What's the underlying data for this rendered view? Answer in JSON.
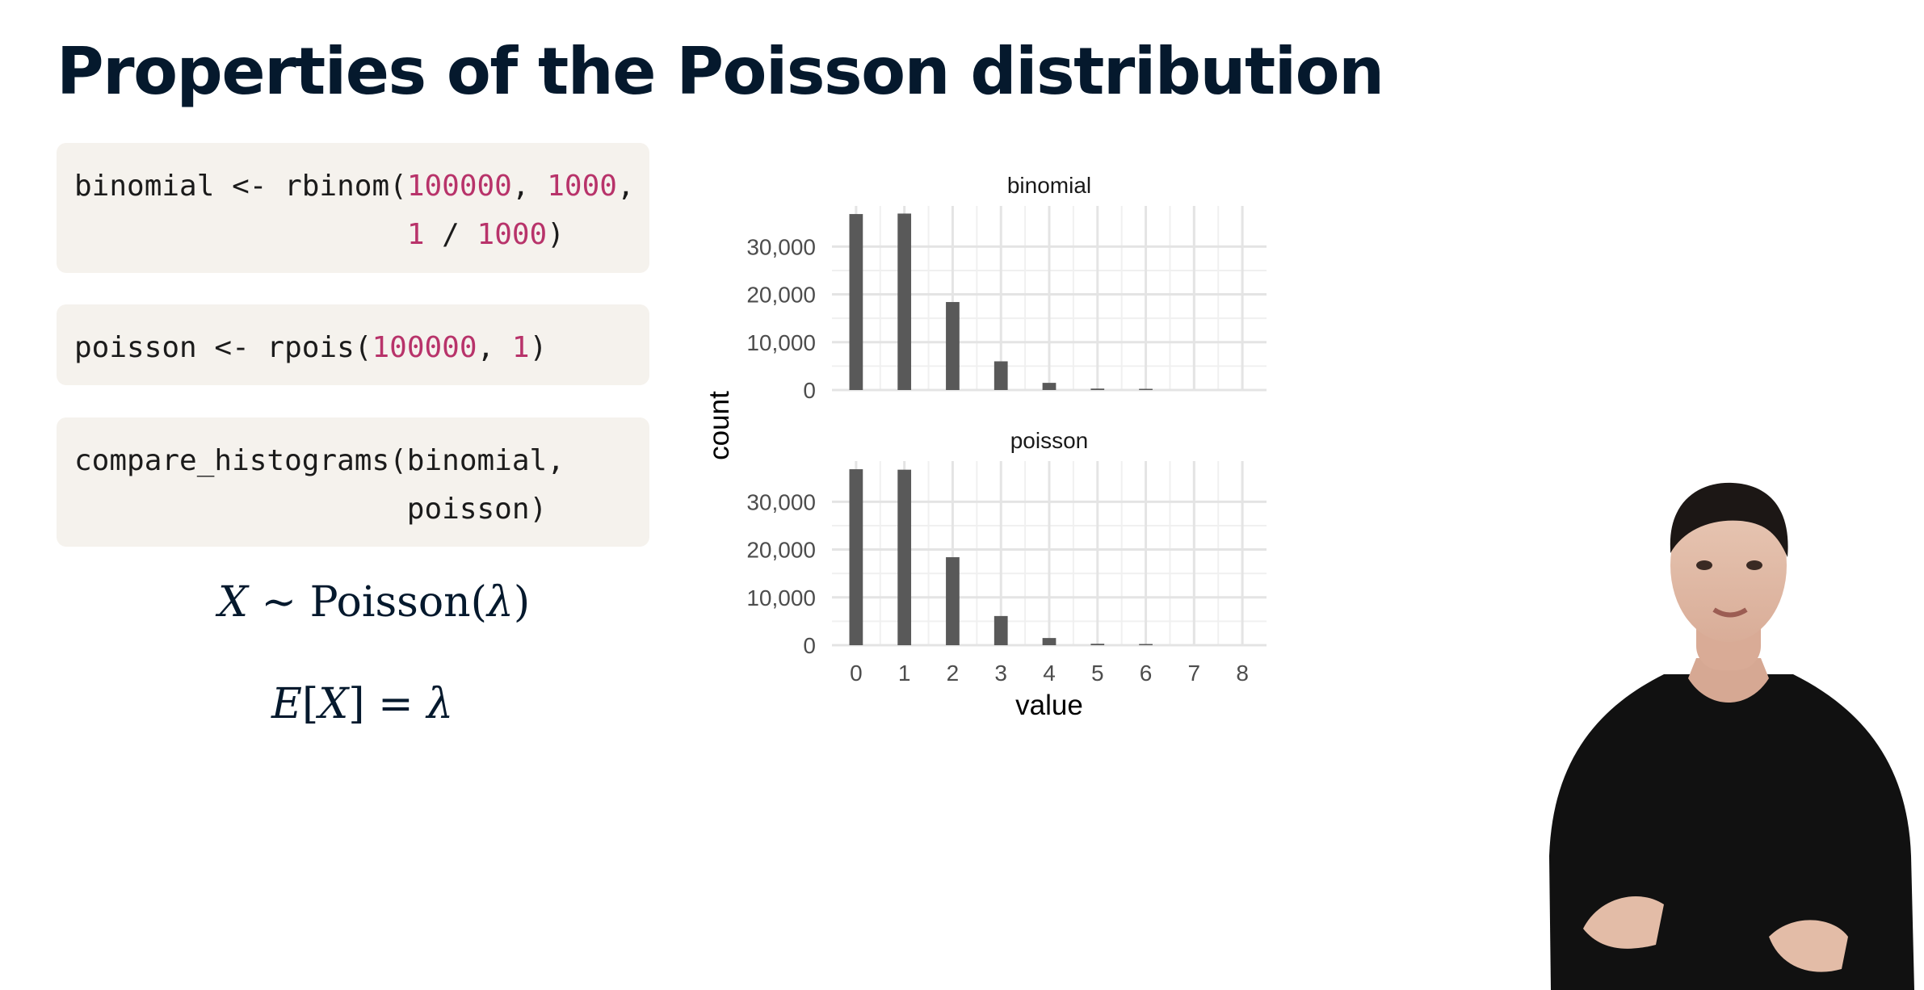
{
  "slide": {
    "title": "Properties of the Poisson distribution"
  },
  "code_blocks": [
    {
      "lines": [
        [
          {
            "t": "binomial <- rbinom("
          },
          {
            "t": "100000",
            "n": true
          },
          {
            "t": ", "
          },
          {
            "t": "1000",
            "n": true
          },
          {
            "t": ","
          }
        ],
        [
          {
            "t": "                   "
          },
          {
            "t": "1",
            "n": true
          },
          {
            "t": " / "
          },
          {
            "t": "1000",
            "n": true
          },
          {
            "t": ")"
          }
        ]
      ]
    },
    {
      "lines": [
        [
          {
            "t": "poisson <- rpois("
          },
          {
            "t": "100000",
            "n": true
          },
          {
            "t": ", "
          },
          {
            "t": "1",
            "n": true
          },
          {
            "t": ")"
          }
        ]
      ]
    },
    {
      "lines": [
        [
          {
            "t": "compare_histograms(binomial,"
          }
        ],
        [
          {
            "t": "                   poisson)"
          }
        ]
      ]
    }
  ],
  "formulas": {
    "distribution": {
      "var": "X",
      "rel": " ∼ ",
      "dist": "Poisson(",
      "param": "λ",
      "close": ")"
    },
    "expectation": {
      "lhs_e": "E",
      "lhs_open": "[",
      "lhs_var": "X",
      "lhs_close": "]",
      "rel": " = ",
      "rhs": "λ"
    }
  },
  "colors": {
    "code_num": "#b8336a",
    "code_bg": "#f5f2ed",
    "bar": "#595959",
    "title": "#05192d"
  },
  "chart_data": {
    "type": "bar",
    "facets": [
      "binomial",
      "poisson"
    ],
    "xlabel": "value",
    "ylabel": "count",
    "categories": [
      0,
      1,
      2,
      3,
      4,
      5,
      6,
      7,
      8
    ],
    "xlim": [
      -0.5,
      8.5
    ],
    "ylim": [
      0,
      38500
    ],
    "yticks": [
      0,
      10000,
      20000,
      30000
    ],
    "ytick_labels": [
      "0",
      "10,000",
      "20,000",
      "30,000"
    ],
    "xtick_labels": [
      "0",
      "1",
      "2",
      "3",
      "4",
      "5",
      "6",
      "7",
      "8"
    ],
    "grid": true,
    "legend": "none",
    "series": [
      {
        "name": "binomial",
        "values": [
          36800,
          36900,
          18400,
          6000,
          1500,
          300,
          60,
          0,
          0
        ]
      },
      {
        "name": "poisson",
        "values": [
          36800,
          36700,
          18400,
          6100,
          1500,
          300,
          50,
          0,
          0
        ]
      }
    ]
  }
}
